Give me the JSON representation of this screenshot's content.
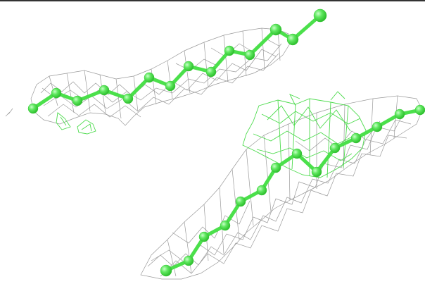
{
  "colors": {
    "background": "#ffffff",
    "top_rule": "#333333",
    "mesh": "#9a9a9a",
    "chain_bond": "#4be04b",
    "chain_atom": "#5fe85f",
    "chain_atom_highlight": "#b8ffb8",
    "density_green": "#4ddb4d"
  },
  "scene": {
    "description_free": true,
    "chains": 2,
    "density_mesh": "grey",
    "overlay_density": "green"
  }
}
